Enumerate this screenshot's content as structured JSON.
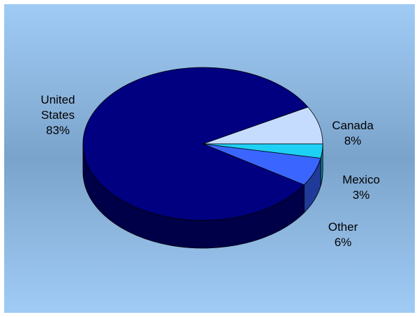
{
  "chart_data": {
    "type": "pie",
    "style": "3d",
    "slices": [
      {
        "name": "United States",
        "value": 83,
        "label_lines": [
          "United",
          "States",
          "83%"
        ],
        "color": "#000080",
        "side": "#000048"
      },
      {
        "name": "Canada",
        "value": 8,
        "label_lines": [
          "Canada",
          "8%"
        ],
        "color": "#c6dcff",
        "side": "#8aa0c4"
      },
      {
        "name": "Mexico",
        "value": 3,
        "label_lines": [
          "Mexico",
          "3%"
        ],
        "color": "#1fd0f5",
        "side": "#0d7f98"
      },
      {
        "name": "Other",
        "value": 6,
        "label_lines": [
          "Other",
          "6%"
        ],
        "color": "#3a66ff",
        "side": "#1f3a99"
      }
    ]
  }
}
